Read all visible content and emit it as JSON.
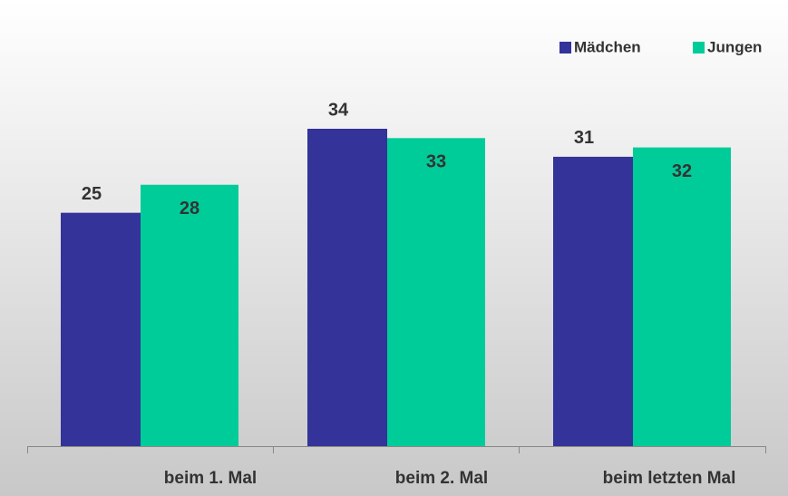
{
  "chart_data": {
    "type": "bar",
    "categories": [
      "beim 1. Mal",
      "beim 2. Mal",
      "beim letzten Mal"
    ],
    "series": [
      {
        "name": "Mädchen",
        "color": "#333399",
        "values": [
          25,
          34,
          31
        ]
      },
      {
        "name": "Jungen",
        "color": "#00cc99",
        "values": [
          28,
          33,
          32
        ]
      }
    ],
    "legend": "top-right"
  }
}
